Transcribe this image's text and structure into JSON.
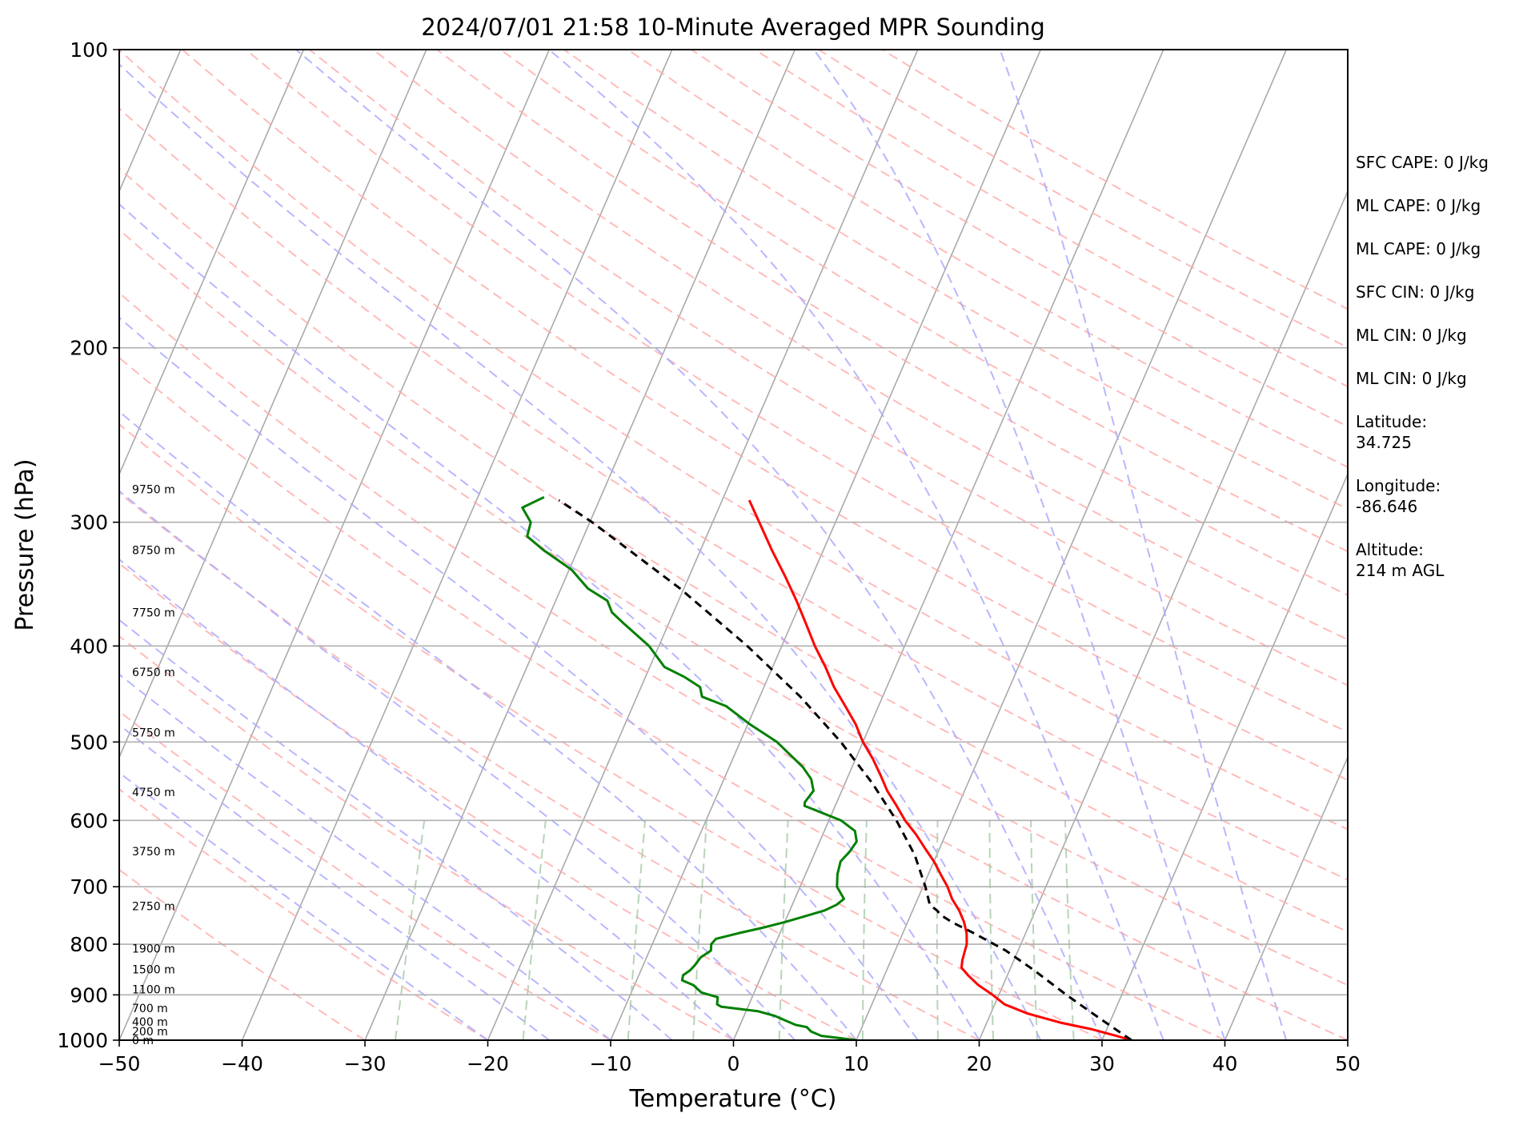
{
  "chart_data": {
    "type": "line",
    "title": "2024/07/01 21:58 10-Minute Averaged MPR Sounding",
    "xlabel": "Temperature (°C)",
    "ylabel": "Pressure (hPa)",
    "xlim": [
      -50,
      50
    ],
    "ylim": [
      1000,
      100
    ],
    "yscale": "log",
    "x_ticks": [
      -50,
      -40,
      -30,
      -20,
      -10,
      0,
      10,
      20,
      30,
      40,
      50
    ],
    "x_tick_labels": [
      "−50",
      "−40",
      "−30",
      "−20",
      "−10",
      "0",
      "10",
      "20",
      "30",
      "40",
      "50"
    ],
    "y_ticks": [
      100,
      200,
      300,
      400,
      500,
      600,
      700,
      800,
      900,
      1000
    ],
    "y_tick_labels": [
      "100",
      "200",
      "300",
      "400",
      "500",
      "600",
      "700",
      "800",
      "900",
      "1000"
    ],
    "skew": 35,
    "isotherm_color": "#aaaaaa",
    "dry_adiabat_color": "#ffaaaa",
    "moist_adiabat_color": "#aaaaff",
    "mixing_ratio_color": "#aaccaa",
    "series": [
      {
        "role": "temperature",
        "color": "#ff0000",
        "style": "solid",
        "points": [
          [
            1000,
            32.4
          ],
          [
            990,
            31.0
          ],
          [
            975,
            28.8
          ],
          [
            960,
            26.0
          ],
          [
            940,
            23.0
          ],
          [
            920,
            20.8
          ],
          [
            900,
            19.5
          ],
          [
            880,
            18.0
          ],
          [
            860,
            16.8
          ],
          [
            845,
            16.0
          ],
          [
            830,
            15.8
          ],
          [
            815,
            15.7
          ],
          [
            800,
            15.6
          ],
          [
            780,
            15.2
          ],
          [
            760,
            14.6
          ],
          [
            740,
            13.8
          ],
          [
            720,
            12.8
          ],
          [
            700,
            12.0
          ],
          [
            680,
            11.0
          ],
          [
            660,
            10.0
          ],
          [
            640,
            8.8
          ],
          [
            620,
            7.6
          ],
          [
            600,
            6.2
          ],
          [
            580,
            5.0
          ],
          [
            560,
            3.7
          ],
          [
            540,
            2.6
          ],
          [
            520,
            1.4
          ],
          [
            500,
            0.0
          ],
          [
            480,
            -1.2
          ],
          [
            460,
            -2.7
          ],
          [
            440,
            -4.3
          ],
          [
            420,
            -5.7
          ],
          [
            400,
            -7.3
          ],
          [
            380,
            -8.8
          ],
          [
            360,
            -10.4
          ],
          [
            340,
            -12.2
          ],
          [
            320,
            -14.2
          ],
          [
            300,
            -16.2
          ],
          [
            285,
            -17.8
          ]
        ]
      },
      {
        "role": "dewpoint",
        "color": "#008000",
        "style": "solid",
        "points": [
          [
            1000,
            10.0
          ],
          [
            995,
            8.5
          ],
          [
            990,
            7.0
          ],
          [
            980,
            6.0
          ],
          [
            970,
            5.5
          ],
          [
            965,
            4.5
          ],
          [
            955,
            3.5
          ],
          [
            945,
            2.5
          ],
          [
            935,
            1.0
          ],
          [
            925,
            -2.2
          ],
          [
            920,
            -2.6
          ],
          [
            905,
            -2.8
          ],
          [
            895,
            -4.3
          ],
          [
            880,
            -5.2
          ],
          [
            870,
            -6.3
          ],
          [
            860,
            -6.4
          ],
          [
            850,
            -6.0
          ],
          [
            840,
            -5.8
          ],
          [
            825,
            -5.6
          ],
          [
            812,
            -5.0
          ],
          [
            800,
            -5.2
          ],
          [
            790,
            -5.0
          ],
          [
            780,
            -3.4
          ],
          [
            770,
            -1.6
          ],
          [
            760,
            0.0
          ],
          [
            750,
            1.4
          ],
          [
            740,
            2.8
          ],
          [
            730,
            3.6
          ],
          [
            720,
            4.0
          ],
          [
            700,
            3.0
          ],
          [
            680,
            2.6
          ],
          [
            660,
            2.4
          ],
          [
            645,
            2.8
          ],
          [
            630,
            3.0
          ],
          [
            615,
            2.5
          ],
          [
            600,
            1.0
          ],
          [
            580,
            -2.5
          ],
          [
            575,
            -2.6
          ],
          [
            560,
            -2.3
          ],
          [
            545,
            -2.9
          ],
          [
            530,
            -4.0
          ],
          [
            500,
            -7.0
          ],
          [
            480,
            -9.8
          ],
          [
            460,
            -12.4
          ],
          [
            450,
            -14.7
          ],
          [
            440,
            -15.2
          ],
          [
            430,
            -16.8
          ],
          [
            420,
            -18.8
          ],
          [
            400,
            -20.8
          ],
          [
            380,
            -23.6
          ],
          [
            370,
            -25.0
          ],
          [
            360,
            -25.8
          ],
          [
            350,
            -27.8
          ],
          [
            335,
            -29.8
          ],
          [
            320,
            -32.8
          ],
          [
            310,
            -34.6
          ],
          [
            300,
            -34.8
          ],
          [
            290,
            -36.0
          ],
          [
            283,
            -34.6
          ]
        ]
      },
      {
        "role": "parcel",
        "color": "#000000",
        "style": "dashed",
        "points": [
          [
            1000,
            32.4
          ],
          [
            950,
            29.0
          ],
          [
            900,
            25.5
          ],
          [
            850,
            22.0
          ],
          [
            812,
            19.0
          ],
          [
            780,
            15.8
          ],
          [
            760,
            13.6
          ],
          [
            748,
            12.5
          ],
          [
            740,
            12.0
          ],
          [
            730,
            11.2
          ],
          [
            700,
            10.2
          ],
          [
            650,
            8.2
          ],
          [
            600,
            5.5
          ],
          [
            550,
            2.2
          ],
          [
            500,
            -1.8
          ],
          [
            450,
            -6.7
          ],
          [
            400,
            -12.8
          ],
          [
            350,
            -20.3
          ],
          [
            300,
            -29.8
          ],
          [
            285,
            -33.3
          ]
        ]
      }
    ],
    "height_labels": [
      {
        "p": 1000,
        "text": "0 m"
      },
      {
        "p": 980,
        "text": "200 m"
      },
      {
        "p": 958,
        "text": "400 m"
      },
      {
        "p": 928,
        "text": "700 m"
      },
      {
        "p": 889,
        "text": "1100 m"
      },
      {
        "p": 848,
        "text": "1500 m"
      },
      {
        "p": 808,
        "text": "1900 m"
      },
      {
        "p": 732,
        "text": "2750 m"
      },
      {
        "p": 645,
        "text": "3750 m"
      },
      {
        "p": 562,
        "text": "4750 m"
      },
      {
        "p": 489,
        "text": "5750 m"
      },
      {
        "p": 425,
        "text": "6750 m"
      },
      {
        "p": 370,
        "text": "7750 m"
      },
      {
        "p": 320,
        "text": "8750 m"
      },
      {
        "p": 278,
        "text": "9750 m"
      }
    ]
  },
  "stats": [
    "SFC CAPE: 0 J/kg",
    "ML CAPE: 0 J/kg",
    "ML CAPE: 0 J/kg",
    "SFC CIN: 0 J/kg",
    "ML CIN: 0 J/kg",
    "ML CIN: 0 J/kg",
    [
      "Latitude:",
      "34.725"
    ],
    [
      "Longitude:",
      "-86.646"
    ],
    [
      "Altitude:",
      "214 m AGL"
    ]
  ]
}
